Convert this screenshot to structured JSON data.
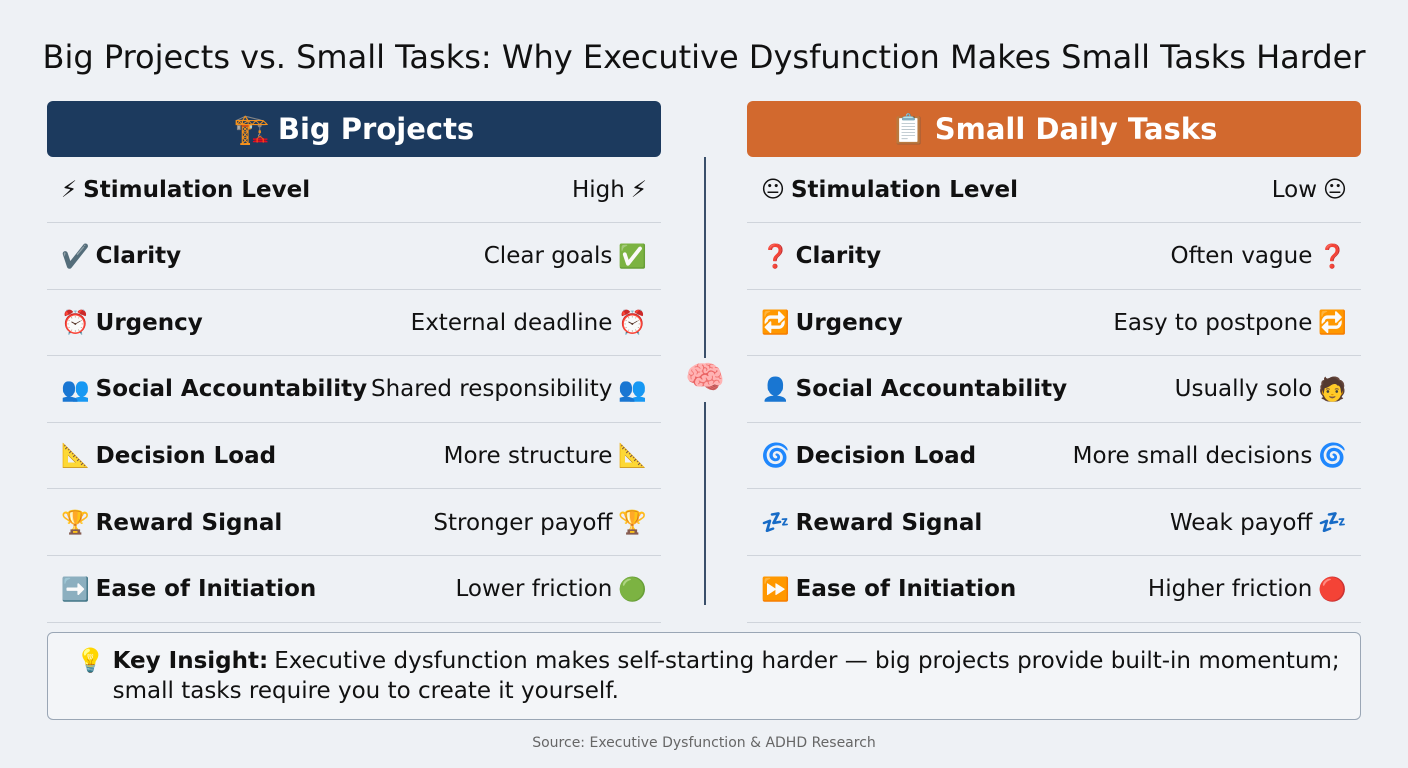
{
  "title": "Big Projects vs. Small Tasks: Why Executive Dysfunction Makes Small Tasks Harder",
  "columns": [
    {
      "icon": "🏗️",
      "heading": "Big Projects",
      "rows": [
        {
          "icon": "⚡",
          "label": "Stimulation Level",
          "value": "High",
          "value_icon": "⚡"
        },
        {
          "icon": "✔️",
          "label": "Clarity",
          "value": "Clear goals",
          "value_icon": "✅"
        },
        {
          "icon": "⏰",
          "label": "Urgency",
          "value": "External deadline",
          "value_icon": "⏰"
        },
        {
          "icon": "👥",
          "label": "Social Accountability",
          "value": "Shared responsibility",
          "value_icon": "👥"
        },
        {
          "icon": "📐",
          "label": "Decision Load",
          "value": "More structure",
          "value_icon": "📐"
        },
        {
          "icon": "🏆",
          "label": "Reward Signal",
          "value": "Stronger payoff",
          "value_icon": "🏆"
        },
        {
          "icon": "➡️",
          "label": "Ease of Initiation",
          "value": "Lower friction",
          "value_icon": "🟢"
        }
      ]
    },
    {
      "icon": "📋",
      "heading": "Small Daily Tasks",
      "rows": [
        {
          "icon": "😐",
          "label": "Stimulation Level",
          "value": "Low",
          "value_icon": "😐"
        },
        {
          "icon": "❓",
          "label": "Clarity",
          "value": "Often vague",
          "value_icon": "❓"
        },
        {
          "icon": "🔁",
          "label": "Urgency",
          "value": "Easy to postpone",
          "value_icon": "🔁"
        },
        {
          "icon": "👤",
          "label": "Social Accountability",
          "value": "Usually solo",
          "value_icon": "🧑"
        },
        {
          "icon": "🌀",
          "label": "Decision Load",
          "value": "More small decisions",
          "value_icon": "🌀"
        },
        {
          "icon": "💤",
          "label": "Reward Signal",
          "value": "Weak payoff",
          "value_icon": "💤"
        },
        {
          "icon": "⏩",
          "label": "Ease of Initiation",
          "value": "Higher friction",
          "value_icon": "🔴"
        }
      ]
    }
  ],
  "center_icon": "🧠",
  "insight": {
    "icon": "💡",
    "label": "Key Insight:",
    "text": "Executive dysfunction makes self-starting harder — big projects provide built-in momentum; small tasks require you to create it yourself."
  },
  "source": "Source: Executive Dysfunction & ADHD Research"
}
